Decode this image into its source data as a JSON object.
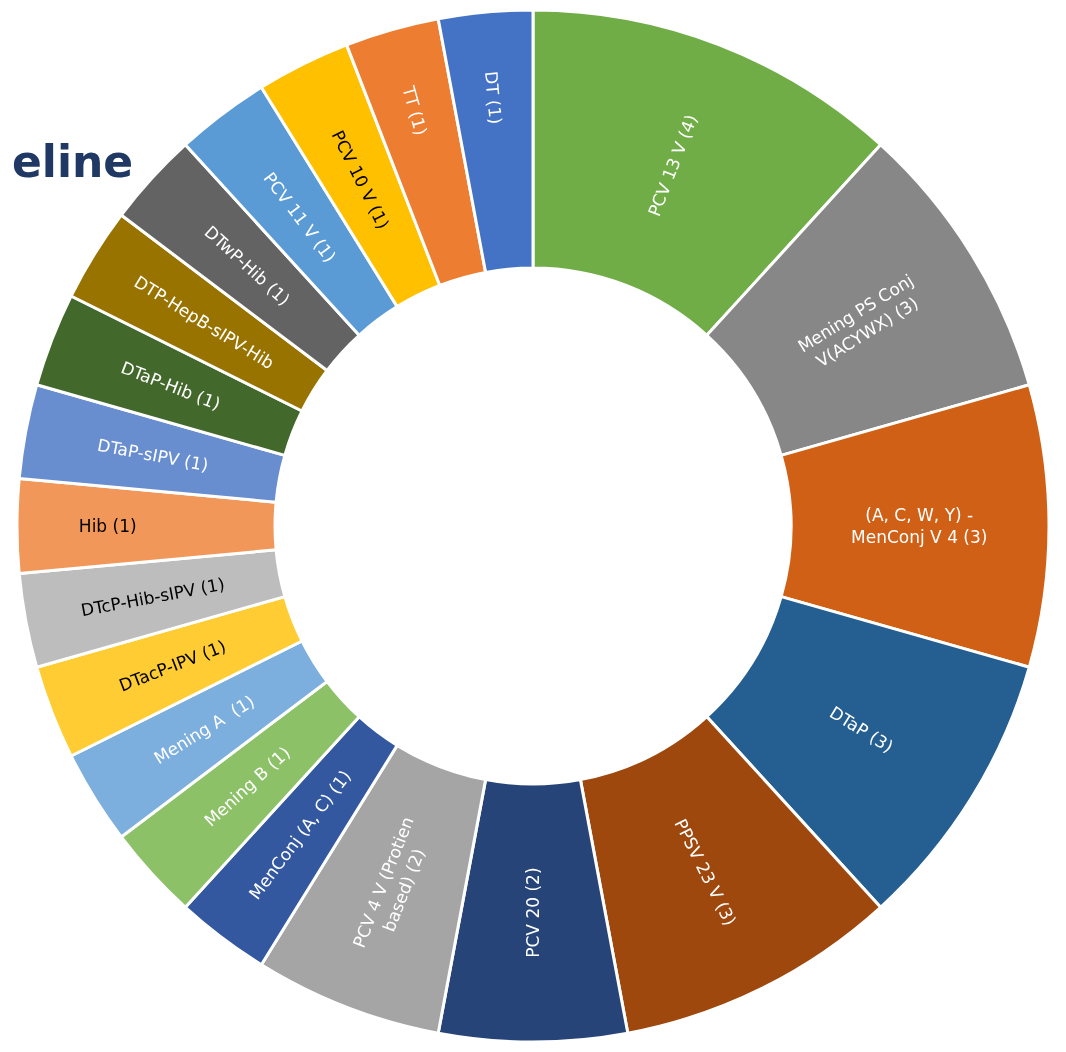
{
  "chart_data": {
    "type": "donut",
    "title": "eline",
    "categories": [
      "PCV 13 V (4)",
      "Mening PS Conj\nV(ACYWX) (3)",
      "(A, C, W, Y) -\nMenConj V 4 (3)",
      "DTaP (3)",
      "PPSV 23 V (3)",
      "PCV 20 (2)",
      "PCV 4 V (Protien\nbased) (2)",
      "MenConj (A, C) (1)",
      "Mening B (1)",
      "Mening A  (1)",
      "DTacP-IPV (1)",
      "DTcP-Hib-sIPV (1)",
      "Hib (1)",
      "DTaP-sIPV (1)",
      "DTaP-Hib (1)",
      "DTP-HepB-sIPV-Hib",
      "DTwP-Hib (1)",
      "PCV 11 V (1)",
      "PCV 10 V (1)",
      "TT (1)",
      "DT (1)"
    ],
    "values": [
      4,
      3,
      3,
      3,
      3,
      2,
      2,
      1,
      1,
      1,
      1,
      1,
      1,
      1,
      1,
      1,
      1,
      1,
      1,
      1,
      1
    ],
    "colors": [
      "#70ad47",
      "#878787",
      "#d06015",
      "#255e91",
      "#9e480e",
      "#264478",
      "#a5a5a5",
      "#3358a0",
      "#8cc168",
      "#7cafdd",
      "#ffcd33",
      "#bdbdbd",
      "#f1975a",
      "#698ed0",
      "#43682b",
      "#997300",
      "#636363",
      "#5b9bd5",
      "#ffc000",
      "#ed7d31",
      "#4472c4"
    ],
    "legend": false
  }
}
